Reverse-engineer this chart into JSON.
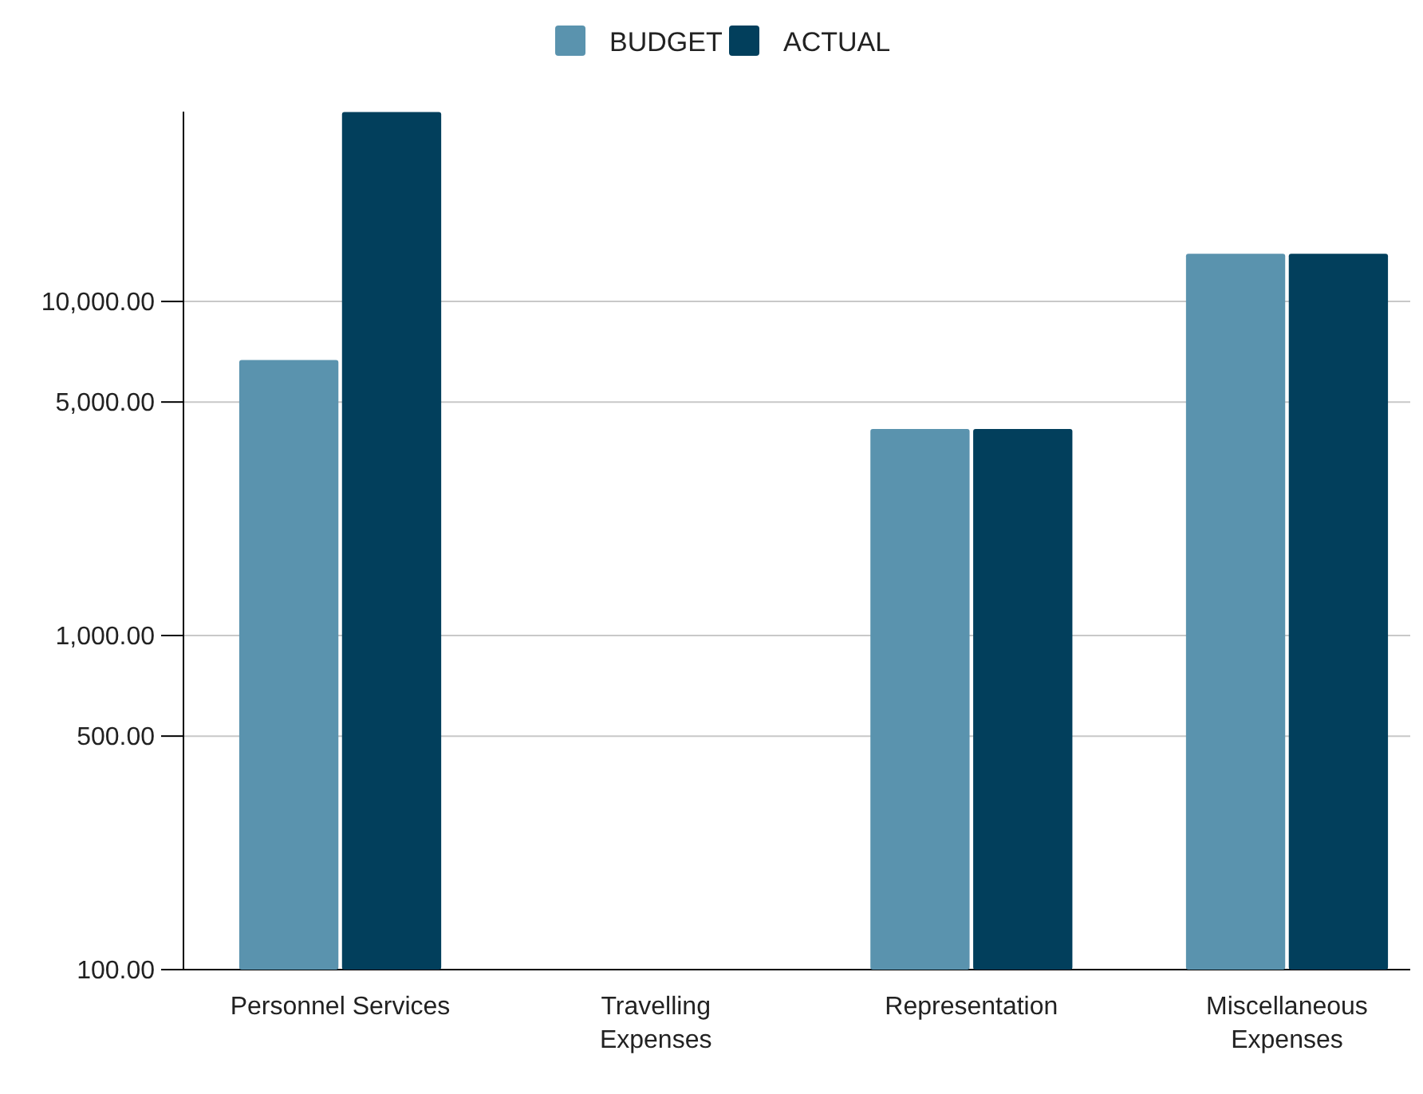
{
  "chart_data": {
    "type": "bar",
    "categories": [
      "Personnel Services",
      "Travelling Expenses",
      "Representation",
      "Miscellaneous Expenses"
    ],
    "series": [
      {
        "name": "BUDGET",
        "color": "#5a93ae",
        "values": [
          6680,
          null,
          4150,
          13900
        ]
      },
      {
        "name": "ACTUAL",
        "color": "#023f5c",
        "values": [
          36900,
          null,
          4150,
          13900
        ]
      }
    ],
    "log": true,
    "ylim": [
      100,
      37000
    ],
    "yticks": [
      {
        "value": 100,
        "label": "100.00"
      },
      {
        "value": 500,
        "label": "500.00"
      },
      {
        "value": 1000,
        "label": "1,000.00"
      },
      {
        "value": 5000,
        "label": "5,000.00"
      },
      {
        "value": 10000,
        "label": "10,000.00"
      }
    ],
    "grid": "y",
    "legend": "top"
  }
}
